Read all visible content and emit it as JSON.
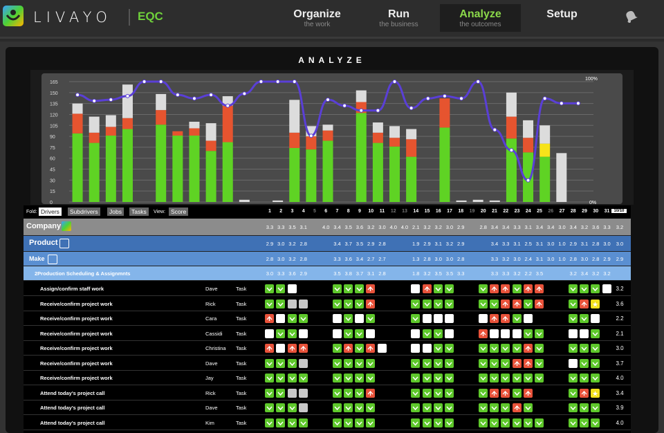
{
  "app": {
    "brand": "LIVAYO",
    "product": "EQC"
  },
  "nav": [
    {
      "title": "Organize",
      "sub": "the work",
      "active": false
    },
    {
      "title": "Run",
      "sub": "the business",
      "active": false
    },
    {
      "title": "Analyze",
      "sub": "the outcomes",
      "active": true
    },
    {
      "title": "Setup",
      "sub": "",
      "active": false
    }
  ],
  "icons": {
    "bell": "bell-icon",
    "logo": "livayo-logo-icon",
    "tag": "tag-icon",
    "gender": "gender-icon",
    "company": "company-icon"
  },
  "section_title": "ANALYZE",
  "chart_data": {
    "type": "bar",
    "y_ticks": [
      "165",
      "150",
      "135",
      "120",
      "105",
      "90",
      "75",
      "60",
      "45",
      "30",
      "15",
      "0"
    ],
    "y_right": {
      "top": "100%",
      "bottom": "0%"
    },
    "ylim": [
      0,
      165
    ],
    "colors": {
      "green": "#5fd324",
      "red": "#e6542f",
      "grey": "#dcdcdc",
      "yellow": "#f7e31a",
      "line": "#5a3fd6"
    },
    "days": [
      "1",
      "2",
      "3",
      "4",
      "5",
      "6",
      "7",
      "8",
      "9",
      "10",
      "11",
      "12",
      "13",
      "14",
      "15",
      "16",
      "17",
      "18",
      "19",
      "20",
      "21",
      "22",
      "23",
      "24",
      "25",
      "26",
      "27",
      "28",
      "29",
      "30",
      "31"
    ],
    "green": [
      94,
      81,
      91,
      100,
      0,
      106,
      91,
      91,
      70,
      82,
      0,
      0,
      0,
      74,
      72,
      84,
      0,
      122,
      81,
      76,
      62,
      0,
      102,
      0,
      0,
      0,
      87,
      68,
      62,
      0,
      0
    ],
    "red": [
      27,
      14,
      12,
      15,
      0,
      20,
      6,
      10,
      14,
      50,
      0,
      0,
      0,
      21,
      18,
      14,
      0,
      15,
      14,
      12,
      24,
      0,
      40,
      0,
      0,
      0,
      30,
      20,
      0,
      0,
      0
    ],
    "yellow": [
      0,
      0,
      0,
      0,
      0,
      0,
      0,
      0,
      0,
      0,
      0,
      0,
      0,
      0,
      0,
      0,
      0,
      0,
      0,
      0,
      0,
      0,
      0,
      0,
      0,
      0,
      0,
      0,
      18,
      0,
      0
    ],
    "grey": [
      14,
      22,
      16,
      46,
      0,
      22,
      0,
      9,
      24,
      13,
      3,
      0,
      2,
      45,
      14,
      8,
      0,
      16,
      14,
      16,
      14,
      0,
      0,
      2,
      3,
      2,
      33,
      24,
      25,
      67,
      0
    ],
    "line": [
      89,
      84,
      85,
      88,
      100,
      100,
      89,
      86,
      89,
      80,
      90,
      100,
      100,
      100,
      55,
      85,
      80,
      76,
      76,
      100,
      78,
      86,
      88,
      86,
      100,
      60,
      43,
      18,
      86,
      82,
      82
    ]
  },
  "toolbar": {
    "fold": "Fold:",
    "view": "View:",
    "buttons": [
      "Drivers",
      "Subdrivers",
      "Jobs",
      "Tasks"
    ],
    "view_btn": "Score",
    "total": "10/10"
  },
  "levels": [
    {
      "label": "Company",
      "scores": [
        "3.3",
        "3.3",
        "3.5",
        "3.1",
        "",
        "4.0",
        "3.4",
        "3.5",
        "3.6",
        "3.2",
        "3.0",
        "4.0",
        "4.0",
        "2.1",
        "3.2",
        "3.2",
        "3.0",
        "2.9",
        "",
        "2.8",
        "3.4",
        "3.4",
        "3.3",
        "3.1",
        "3.4",
        "3.4",
        "3.0",
        "3.4",
        "3.2",
        "3.6",
        "3.3"
      ],
      "total": "3.2"
    },
    {
      "label": "Product",
      "scores": [
        "2.9",
        "3.0",
        "3.2",
        "2.8",
        "",
        "",
        "3.4",
        "3.7",
        "3.5",
        "2.9",
        "2.8",
        "",
        "",
        "1.9",
        "2.9",
        "3.1",
        "3.2",
        "2.9",
        "",
        "",
        "3.4",
        "3.3",
        "3.1",
        "2.5",
        "3.1",
        "3.0",
        "1.0",
        "2.9",
        "3.1",
        "2.8",
        "3.0"
      ],
      "total": "3.0"
    },
    {
      "label": "Make",
      "scores": [
        "2.8",
        "3.0",
        "3.2",
        "2.8",
        "",
        "",
        "3.3",
        "3.6",
        "3.4",
        "2.7",
        "2.7",
        "",
        "",
        "1.3",
        "2.8",
        "3.0",
        "3.0",
        "2.8",
        "",
        "",
        "3.3",
        "3.2",
        "3.0",
        "2.4",
        "3.1",
        "3.0",
        "1.0",
        "2.8",
        "3.0",
        "2.8",
        "2.9"
      ],
      "total": "2.9"
    },
    {
      "label": "2Production Scheduling & Assignmnts",
      "scores": [
        "3.0",
        "3.3",
        "3.6",
        "2.9",
        "",
        "",
        "3.5",
        "3.8",
        "3.7",
        "3.1",
        "2.8",
        "",
        "",
        "1.8",
        "3.2",
        "3.5",
        "3.5",
        "3.3",
        "",
        "",
        "3.3",
        "3.3",
        "3.2",
        "2.2",
        "3.5",
        "",
        "",
        "3.2",
        "3.4",
        "3.2",
        "3.2"
      ],
      "total": ""
    }
  ],
  "rows": [
    {
      "task": "Assign/confirm staff work",
      "person": "Dave",
      "type": "Task",
      "score": "3.2",
      "cells": "ggw.xxx.gggr.wrgg.grrgrr.gggw"
    },
    {
      "task": "Receive/confirm project work",
      "person": "Rick",
      "type": "Task",
      "score": "3.6",
      "cells": "ggll.xxx.gggr.gggg.ggrrgr.gry_"
    },
    {
      "task": "Receive/confirm project work",
      "person": "Cara",
      "type": "Task",
      "score": "2.2",
      "cells": "rwgg.xxx.wgwg.gwww.wrrgw.ggw"
    },
    {
      "task": "Receive/confirm project work",
      "person": "Cassidi",
      "type": "Task",
      "score": "2.1",
      "cells": "wggw.xxx.wggw.wggw.rwwwgg.wwg"
    },
    {
      "task": "Receive/confirm project work",
      "person": "Christina",
      "type": "Task",
      "score": "3.0",
      "cells": "rwrr.xxx.grgrw.wwgg.ggggrg.ggg"
    },
    {
      "task": "Receive/confirm project work",
      "person": "Dave",
      "type": "Task",
      "score": "3.7",
      "cells": "gggl.xxx.gggg.gggg.gggrrg.wgg"
    },
    {
      "task": "Receive/confirm project work",
      "person": "Jay",
      "type": "Task",
      "score": "4.0",
      "cells": "gggg.xxx.gggg.gggg.gggggg.ggg"
    },
    {
      "task": "Attend today's project call",
      "person": "Rick",
      "type": "Task",
      "score": "3.4",
      "cells": "ggll.xxx.gggr.gggg.grrgr.gry"
    },
    {
      "task": "Attend today's project call",
      "person": "Dave",
      "type": "Task",
      "score": "3.9",
      "cells": "gggl.xxx.gggg.gggg.gggrg.ggg"
    },
    {
      "task": "Attend today's project call",
      "person": "Kim",
      "type": "Task",
      "score": "4.0",
      "cells": "gggg.xxx.gggg.gggg.gggggg.ggg"
    }
  ]
}
